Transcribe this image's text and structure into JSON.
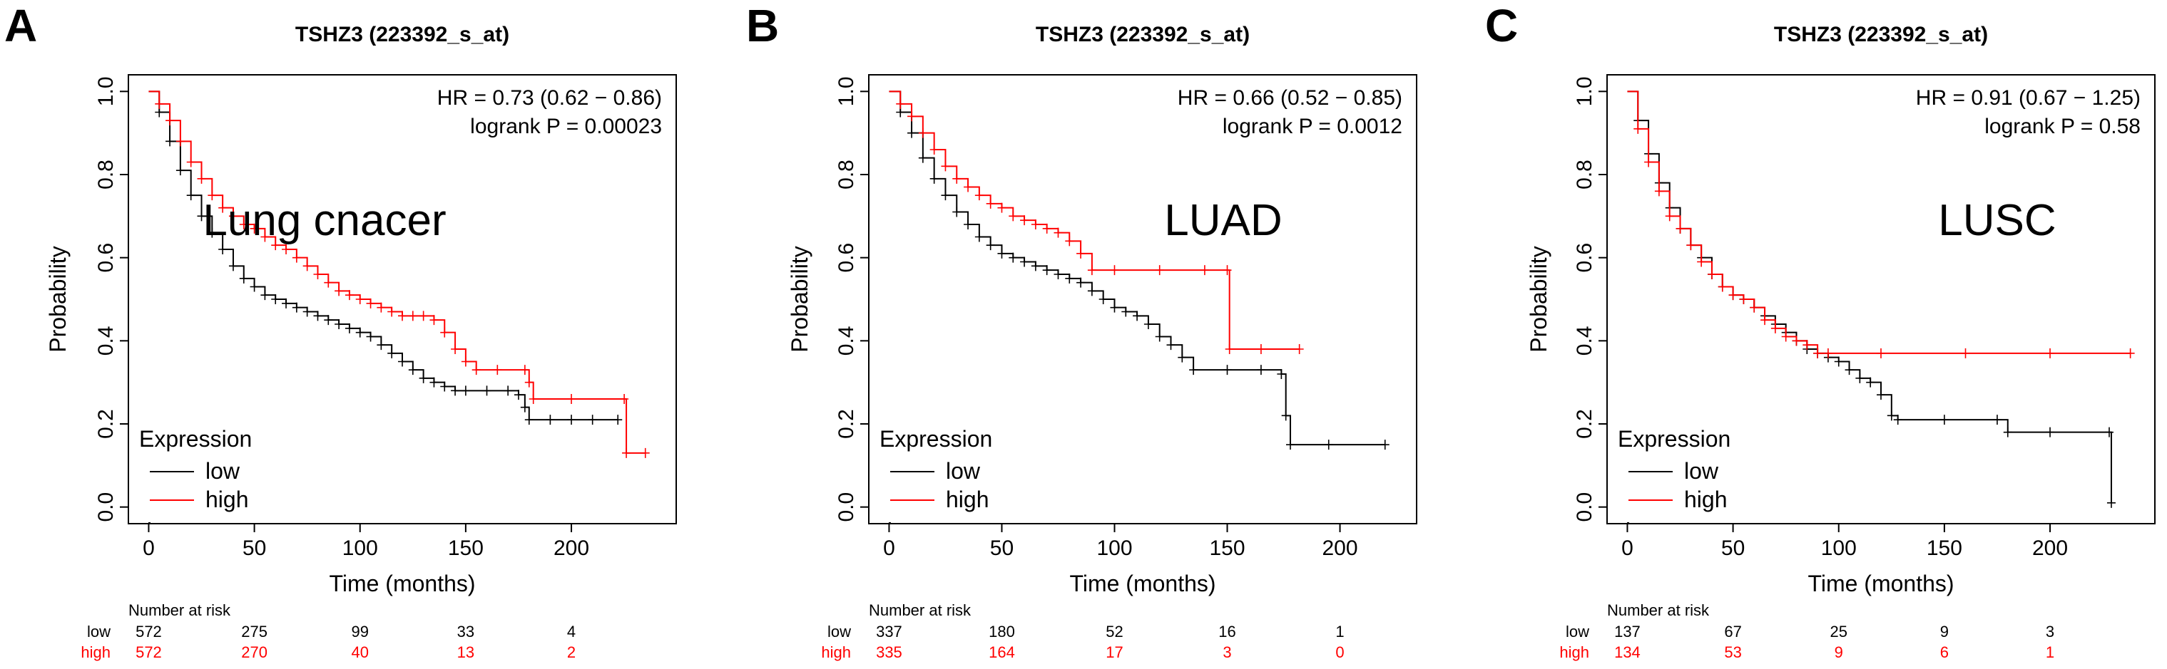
{
  "figure": {
    "panels": [
      {
        "letter": "A",
        "title": "TSHZ3 (223392_s_at)",
        "hr_text": "HR = 0.73 (0.62 − 0.86)",
        "p_text": "logrank P = 0.00023",
        "annotation": "Lung cnacer",
        "legend": {
          "title": "Expression",
          "items": [
            "low",
            "high"
          ]
        },
        "risk": {
          "title": "Number at risk",
          "rows": [
            {
              "label": "low",
              "counts": [
                "572",
                "275",
                "99",
                "33",
                "4"
              ]
            },
            {
              "label": "high",
              "counts": [
                "572",
                "270",
                "40",
                "13",
                "2"
              ]
            }
          ]
        }
      },
      {
        "letter": "B",
        "title": "TSHZ3 (223392_s_at)",
        "hr_text": "HR = 0.66 (0.52 − 0.85)",
        "p_text": "logrank P = 0.0012",
        "annotation": "LUAD",
        "legend": {
          "title": "Expression",
          "items": [
            "low",
            "high"
          ]
        },
        "risk": {
          "title": "Number at risk",
          "rows": [
            {
              "label": "low",
              "counts": [
                "337",
                "180",
                "52",
                "16",
                "1"
              ]
            },
            {
              "label": "high",
              "counts": [
                "335",
                "164",
                "17",
                "3",
                "0"
              ]
            }
          ]
        }
      },
      {
        "letter": "C",
        "title": "TSHZ3 (223392_s_at)",
        "hr_text": "HR = 0.91 (0.67 − 1.25)",
        "p_text": "logrank P = 0.58",
        "annotation": "LUSC",
        "legend": {
          "title": "Expression",
          "items": [
            "low",
            "high"
          ]
        },
        "risk": {
          "title": "Number at risk",
          "rows": [
            {
              "label": "low",
              "counts": [
                "137",
                "67",
                "25",
                "9",
                "3"
              ]
            },
            {
              "label": "high",
              "counts": [
                "134",
                "53",
                "9",
                "6",
                "1"
              ]
            }
          ]
        }
      }
    ]
  },
  "chart_data": [
    {
      "type": "line",
      "title": "TSHZ3 (223392_s_at)",
      "xlabel": "Time (months)",
      "ylabel": "Probability",
      "xlim": [
        0,
        240
      ],
      "ylim": [
        0,
        1
      ],
      "xticks": [
        "0",
        "50",
        "100",
        "150",
        "200"
      ],
      "yticks": [
        "0.0",
        "0.2",
        "0.4",
        "0.6",
        "0.8",
        "1.0"
      ],
      "colors": {
        "low": "#000000",
        "high": "#ff0000"
      },
      "series": [
        {
          "name": "low",
          "points": [
            [
              0,
              1.0
            ],
            [
              5,
              0.95
            ],
            [
              10,
              0.88
            ],
            [
              15,
              0.81
            ],
            [
              20,
              0.75
            ],
            [
              25,
              0.7
            ],
            [
              30,
              0.66
            ],
            [
              35,
              0.62
            ],
            [
              40,
              0.58
            ],
            [
              45,
              0.55
            ],
            [
              50,
              0.53
            ],
            [
              55,
              0.51
            ],
            [
              60,
              0.5
            ],
            [
              65,
              0.49
            ],
            [
              70,
              0.48
            ],
            [
              75,
              0.47
            ],
            [
              80,
              0.46
            ],
            [
              85,
              0.45
            ],
            [
              90,
              0.44
            ],
            [
              95,
              0.43
            ],
            [
              100,
              0.42
            ],
            [
              105,
              0.41
            ],
            [
              110,
              0.39
            ],
            [
              115,
              0.37
            ],
            [
              120,
              0.35
            ],
            [
              125,
              0.33
            ],
            [
              130,
              0.31
            ],
            [
              135,
              0.3
            ],
            [
              140,
              0.29
            ],
            [
              145,
              0.28
            ],
            [
              150,
              0.28
            ],
            [
              160,
              0.28
            ],
            [
              170,
              0.28
            ],
            [
              175,
              0.27
            ],
            [
              178,
              0.24
            ],
            [
              180,
              0.21
            ],
            [
              190,
              0.21
            ],
            [
              200,
              0.21
            ],
            [
              210,
              0.21
            ],
            [
              222,
              0.21
            ]
          ]
        },
        {
          "name": "high",
          "points": [
            [
              0,
              1.0
            ],
            [
              5,
              0.97
            ],
            [
              10,
              0.93
            ],
            [
              15,
              0.88
            ],
            [
              20,
              0.83
            ],
            [
              25,
              0.79
            ],
            [
              30,
              0.75
            ],
            [
              35,
              0.72
            ],
            [
              40,
              0.7
            ],
            [
              45,
              0.68
            ],
            [
              50,
              0.67
            ],
            [
              55,
              0.65
            ],
            [
              60,
              0.63
            ],
            [
              65,
              0.62
            ],
            [
              70,
              0.6
            ],
            [
              75,
              0.58
            ],
            [
              80,
              0.56
            ],
            [
              85,
              0.54
            ],
            [
              90,
              0.52
            ],
            [
              95,
              0.51
            ],
            [
              100,
              0.5
            ],
            [
              105,
              0.49
            ],
            [
              110,
              0.48
            ],
            [
              115,
              0.47
            ],
            [
              120,
              0.46
            ],
            [
              125,
              0.46
            ],
            [
              130,
              0.46
            ],
            [
              135,
              0.45
            ],
            [
              140,
              0.42
            ],
            [
              145,
              0.38
            ],
            [
              150,
              0.35
            ],
            [
              155,
              0.33
            ],
            [
              165,
              0.33
            ],
            [
              178,
              0.33
            ],
            [
              180,
              0.3
            ],
            [
              182,
              0.26
            ],
            [
              200,
              0.26
            ],
            [
              225,
              0.26
            ],
            [
              226,
              0.13
            ],
            [
              235,
              0.13
            ]
          ]
        }
      ]
    },
    {
      "type": "line",
      "title": "TSHZ3 (223392_s_at)",
      "xlabel": "Time (months)",
      "ylabel": "Probability",
      "xlim": [
        0,
        225
      ],
      "ylim": [
        0,
        1
      ],
      "xticks": [
        "0",
        "50",
        "100",
        "150",
        "200"
      ],
      "yticks": [
        "0.0",
        "0.2",
        "0.4",
        "0.6",
        "0.8",
        "1.0"
      ],
      "colors": {
        "low": "#000000",
        "high": "#ff0000"
      },
      "series": [
        {
          "name": "low",
          "points": [
            [
              0,
              1.0
            ],
            [
              5,
              0.95
            ],
            [
              10,
              0.9
            ],
            [
              15,
              0.84
            ],
            [
              20,
              0.79
            ],
            [
              25,
              0.75
            ],
            [
              30,
              0.71
            ],
            [
              35,
              0.68
            ],
            [
              40,
              0.65
            ],
            [
              45,
              0.63
            ],
            [
              50,
              0.61
            ],
            [
              55,
              0.6
            ],
            [
              60,
              0.59
            ],
            [
              65,
              0.58
            ],
            [
              70,
              0.57
            ],
            [
              75,
              0.56
            ],
            [
              80,
              0.55
            ],
            [
              85,
              0.54
            ],
            [
              90,
              0.52
            ],
            [
              95,
              0.5
            ],
            [
              100,
              0.48
            ],
            [
              105,
              0.47
            ],
            [
              110,
              0.46
            ],
            [
              115,
              0.44
            ],
            [
              120,
              0.41
            ],
            [
              125,
              0.39
            ],
            [
              130,
              0.36
            ],
            [
              135,
              0.33
            ],
            [
              150,
              0.33
            ],
            [
              165,
              0.33
            ],
            [
              174,
              0.32
            ],
            [
              176,
              0.22
            ],
            [
              178,
              0.15
            ],
            [
              195,
              0.15
            ],
            [
              220,
              0.15
            ]
          ]
        },
        {
          "name": "high",
          "points": [
            [
              0,
              1.0
            ],
            [
              5,
              0.97
            ],
            [
              10,
              0.94
            ],
            [
              15,
              0.9
            ],
            [
              20,
              0.86
            ],
            [
              25,
              0.82
            ],
            [
              30,
              0.79
            ],
            [
              35,
              0.77
            ],
            [
              40,
              0.75
            ],
            [
              45,
              0.73
            ],
            [
              50,
              0.72
            ],
            [
              55,
              0.7
            ],
            [
              60,
              0.69
            ],
            [
              65,
              0.68
            ],
            [
              70,
              0.67
            ],
            [
              75,
              0.66
            ],
            [
              80,
              0.64
            ],
            [
              85,
              0.61
            ],
            [
              90,
              0.57
            ],
            [
              100,
              0.57
            ],
            [
              120,
              0.57
            ],
            [
              140,
              0.57
            ],
            [
              150,
              0.57
            ],
            [
              151,
              0.38
            ],
            [
              165,
              0.38
            ],
            [
              182,
              0.38
            ]
          ]
        }
      ]
    },
    {
      "type": "line",
      "title": "TSHZ3 (223392_s_at)",
      "xlabel": "Time (months)",
      "ylabel": "Probability",
      "xlim": [
        0,
        240
      ],
      "ylim": [
        0,
        1
      ],
      "xticks": [
        "0",
        "50",
        "100",
        "150",
        "200"
      ],
      "yticks": [
        "0.0",
        "0.2",
        "0.4",
        "0.6",
        "0.8",
        "1.0"
      ],
      "colors": {
        "low": "#000000",
        "high": "#ff0000"
      },
      "series": [
        {
          "name": "low",
          "points": [
            [
              0,
              1.0
            ],
            [
              5,
              0.93
            ],
            [
              10,
              0.85
            ],
            [
              15,
              0.78
            ],
            [
              20,
              0.72
            ],
            [
              25,
              0.67
            ],
            [
              30,
              0.63
            ],
            [
              35,
              0.6
            ],
            [
              40,
              0.56
            ],
            [
              45,
              0.53
            ],
            [
              50,
              0.51
            ],
            [
              55,
              0.5
            ],
            [
              60,
              0.48
            ],
            [
              65,
              0.46
            ],
            [
              70,
              0.44
            ],
            [
              75,
              0.42
            ],
            [
              80,
              0.4
            ],
            [
              85,
              0.38
            ],
            [
              90,
              0.37
            ],
            [
              95,
              0.36
            ],
            [
              100,
              0.35
            ],
            [
              105,
              0.33
            ],
            [
              110,
              0.31
            ],
            [
              115,
              0.3
            ],
            [
              120,
              0.27
            ],
            [
              125,
              0.22
            ],
            [
              128,
              0.21
            ],
            [
              150,
              0.21
            ],
            [
              175,
              0.21
            ],
            [
              180,
              0.18
            ],
            [
              200,
              0.18
            ],
            [
              228,
              0.18
            ],
            [
              229,
              0.01
            ]
          ]
        },
        {
          "name": "high",
          "points": [
            [
              0,
              1.0
            ],
            [
              5,
              0.91
            ],
            [
              10,
              0.83
            ],
            [
              15,
              0.76
            ],
            [
              20,
              0.7
            ],
            [
              25,
              0.67
            ],
            [
              30,
              0.63
            ],
            [
              35,
              0.59
            ],
            [
              40,
              0.56
            ],
            [
              45,
              0.53
            ],
            [
              50,
              0.51
            ],
            [
              55,
              0.5
            ],
            [
              60,
              0.48
            ],
            [
              65,
              0.45
            ],
            [
              70,
              0.43
            ],
            [
              75,
              0.41
            ],
            [
              80,
              0.4
            ],
            [
              85,
              0.39
            ],
            [
              90,
              0.37
            ],
            [
              95,
              0.37
            ],
            [
              120,
              0.37
            ],
            [
              160,
              0.37
            ],
            [
              200,
              0.37
            ],
            [
              238,
              0.37
            ]
          ]
        }
      ]
    }
  ]
}
